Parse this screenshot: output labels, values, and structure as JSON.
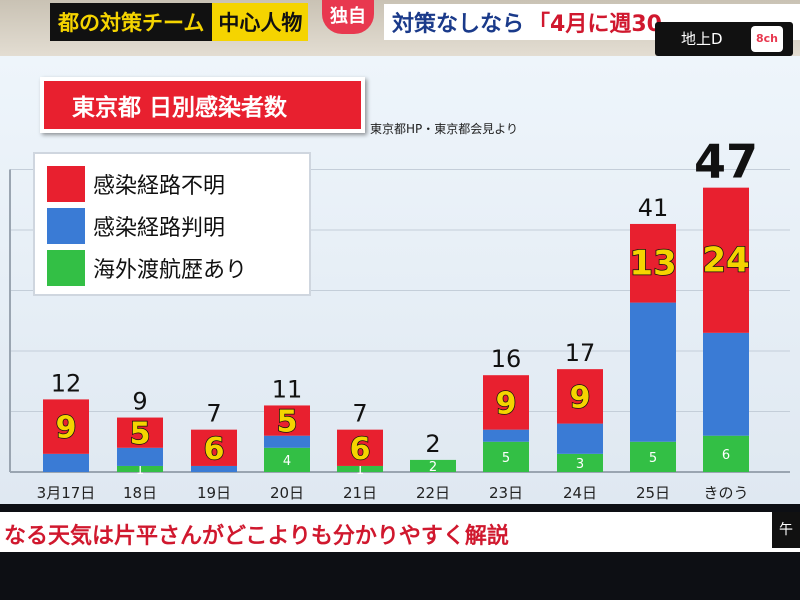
{
  "broadcast": {
    "top_tag_part1": "都の対策チーム",
    "top_tag_part2": "中心人物",
    "exclusive_badge": "独自",
    "headline_part1": "対策なしなら",
    "headline_part2": "「4月に週30",
    "channel_label": "地上D",
    "channel_logo": "8チャンネル"
  },
  "title": "東京都 日別感染者数",
  "source": "東京都HP・東京都会見より",
  "ticker": "なる天気は片平さんがどこよりも分かりやすく解説",
  "ticker_tab": "午",
  "colors": {
    "unknown_route": "#e8202f",
    "known_route": "#3a7bd5",
    "overseas": "#33bf45",
    "highlight_number": "#f5d400"
  },
  "chart_data": {
    "type": "bar",
    "stacked": true,
    "title": "東京都 日別感染者数",
    "categories": [
      "3月17日",
      "18日",
      "19日",
      "20日",
      "21日",
      "22日",
      "23日",
      "24日",
      "25日",
      "きのう"
    ],
    "series": [
      {
        "name": "海外渡航歴あり",
        "values": [
          0,
          1,
          0,
          4,
          1,
          2,
          5,
          3,
          5,
          6
        ]
      },
      {
        "name": "感染経路判明",
        "values": [
          3,
          3,
          1,
          2,
          0,
          0,
          2,
          5,
          23,
          17
        ]
      },
      {
        "name": "感染経路不明",
        "values": [
          9,
          5,
          6,
          5,
          6,
          0,
          9,
          9,
          13,
          24
        ]
      }
    ],
    "totals": [
      12,
      9,
      7,
      11,
      7,
      2,
      16,
      17,
      41,
      47
    ],
    "ylim": [
      0,
      50
    ],
    "grid": true,
    "legend_position": "top-left"
  }
}
